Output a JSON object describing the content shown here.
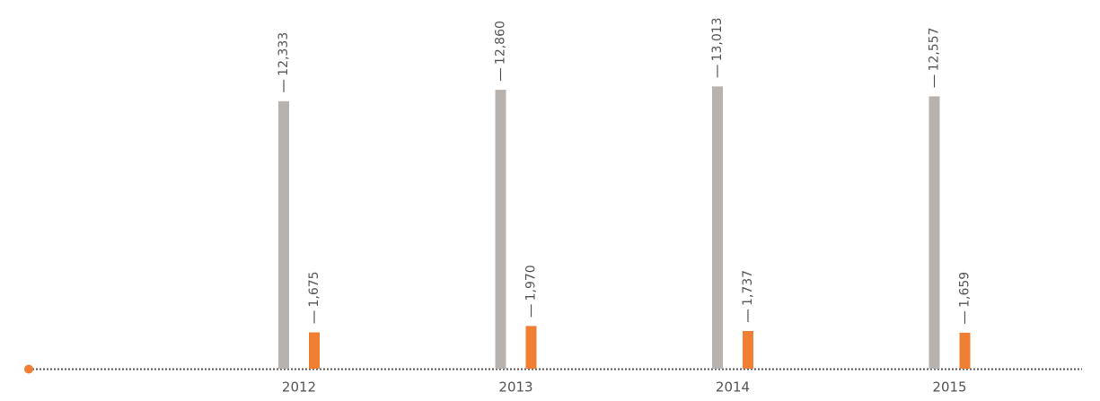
{
  "chart_data": {
    "type": "bar",
    "categories": [
      "2012",
      "2013",
      "2014",
      "2015"
    ],
    "series": [
      {
        "color": "#b7b2ad",
        "values": [
          12333,
          12860,
          13013,
          12557
        ],
        "value_labels": [
          "12,333",
          "12,860",
          "13,013",
          "12,557"
        ]
      },
      {
        "color": "#f07f33",
        "values": [
          1675,
          1970,
          1737,
          1659
        ],
        "value_labels": [
          "1,675",
          "1,970",
          "1,737",
          "1,659"
        ]
      }
    ],
    "ylim": [
      0,
      17000
    ]
  }
}
